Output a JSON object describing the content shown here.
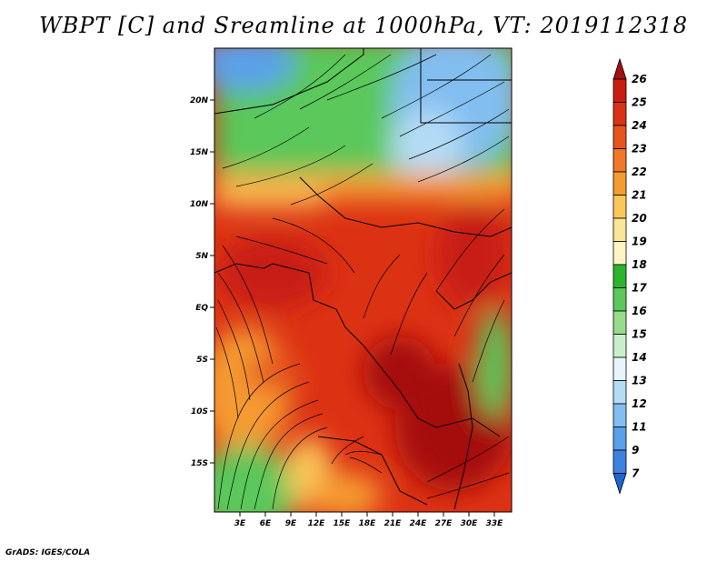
{
  "title": "WBPT [C] and Sreamline at 1000hPa, VT: 2019112318",
  "credit": "GrADS: IGES/COLA",
  "map": {
    "lat_ticks": [
      "20N",
      "15N",
      "10N",
      "5N",
      "EQ",
      "5S",
      "10S",
      "15S"
    ],
    "lon_ticks": [
      "3E",
      "6E",
      "9E",
      "12E",
      "15E",
      "18E",
      "21E",
      "24E",
      "27E",
      "30E",
      "33E"
    ]
  },
  "colorbar": {
    "labels": [
      "26",
      "25",
      "24",
      "23",
      "22",
      "21",
      "20",
      "19",
      "18",
      "17",
      "16",
      "15",
      "14",
      "13",
      "12",
      "11",
      "9",
      "7"
    ],
    "colors": [
      "#a50f0f",
      "#c81e12",
      "#dc3214",
      "#e6551e",
      "#f07828",
      "#f59b32",
      "#fac85a",
      "#fae696",
      "#fff5c3",
      "#2db42d",
      "#5ac85a",
      "#96dc8c",
      "#c8f0c8",
      "#e6f5fa",
      "#b4dcf5",
      "#82bef0",
      "#5aa0eb",
      "#3c82e1",
      "#1e64d2"
    ]
  }
}
